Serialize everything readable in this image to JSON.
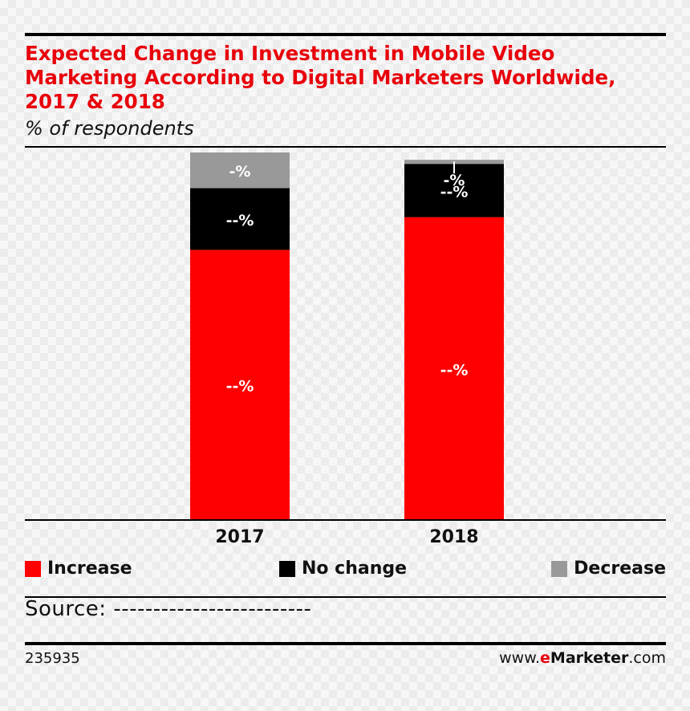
{
  "title": "Expected Change in Investment in Mobile Video Marketing According to Digital Marketers Worldwide, 2017 & 2018",
  "subtitle": "% of respondents",
  "source_text": "Source: -------------------------",
  "chart_id": "235935",
  "brand": {
    "prefix": "www.",
    "e": "e",
    "name": "Marketer",
    "suffix": ".com"
  },
  "colors": {
    "increase": "#fe0000",
    "no_change": "#000000",
    "decrease": "#999999",
    "title": "#e8000b"
  },
  "chart_data": {
    "type": "bar",
    "stacked": true,
    "categories": [
      "2017",
      "2018"
    ],
    "ylim": [
      0,
      100
    ],
    "series": [
      {
        "name": "Increase",
        "color": "#fe0000",
        "values": [
          73.5,
          82.4
        ],
        "labels": [
          "--%",
          "--%"
        ]
      },
      {
        "name": "No change",
        "color": "#000000",
        "values": [
          16.8,
          14.5
        ],
        "labels": [
          "--%",
          "--%"
        ]
      },
      {
        "name": "Decrease",
        "color": "#999999",
        "values": [
          9.7,
          1.1
        ],
        "labels": [
          "-%",
          "-%"
        ]
      }
    ],
    "legend_position": "bottom"
  }
}
